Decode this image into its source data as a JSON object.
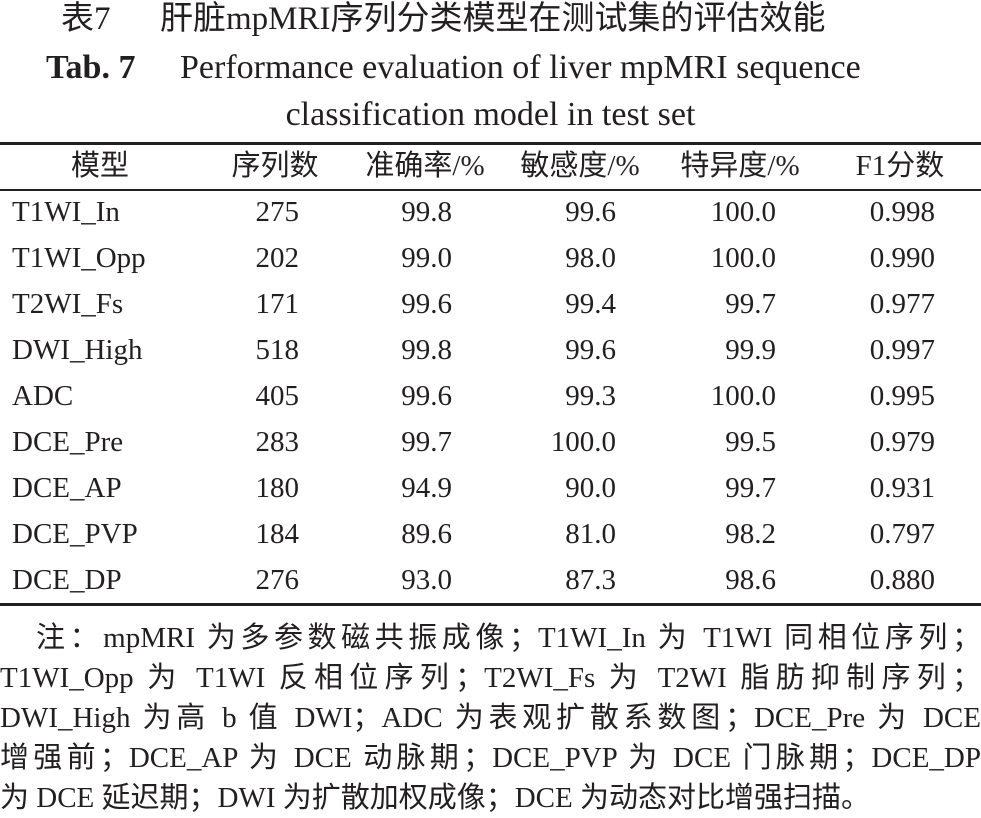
{
  "caption": {
    "label_cn": "表7",
    "title_cn": "肝脏mpMRI序列分类模型在测试集的评估效能",
    "label_en": "Tab. 7",
    "title_en_1": "Performance evaluation of liver mpMRI sequence",
    "title_en_2": "classification model in test set"
  },
  "table": {
    "header": [
      "模型",
      "序列数",
      "准确率/%",
      "敏感度/%",
      "特异度/%",
      "F1分数"
    ],
    "rows": [
      [
        "T1WI_In",
        "275",
        "99.8",
        "99.6",
        "100.0",
        "0.998"
      ],
      [
        "T1WI_Opp",
        "202",
        "99.0",
        "98.0",
        "100.0",
        "0.990"
      ],
      [
        "T2WI_Fs",
        "171",
        "99.6",
        "99.4",
        "99.7",
        "0.977"
      ],
      [
        "DWI_High",
        "518",
        "99.8",
        "99.6",
        "99.9",
        "0.997"
      ],
      [
        "ADC",
        "405",
        "99.6",
        "99.3",
        "100.0",
        "0.995"
      ],
      [
        "DCE_Pre",
        "283",
        "99.7",
        "100.0",
        "99.5",
        "0.979"
      ],
      [
        "DCE_AP",
        "180",
        "94.9",
        "90.0",
        "99.7",
        "0.931"
      ],
      [
        "DCE_PVP",
        "184",
        "89.6",
        "81.0",
        "98.2",
        "0.797"
      ],
      [
        "DCE_DP",
        "276",
        "93.0",
        "87.3",
        "98.6",
        "0.880"
      ]
    ]
  },
  "note": [
    "注：mpMRI 为多参数磁共振成像；T1WI_In 为 T1WI 同相位序列；",
    "T1WI_Opp 为 T1WI 反相位序列；T2WI_Fs 为 T2WI 脂肪抑制序列；",
    "DWI_High 为高 b 值 DWI；ADC 为表观扩散系数图；DCE_Pre 为 DCE",
    "增强前；DCE_AP 为 DCE 动脉期；DCE_PVP 为 DCE 门脉期；DCE_DP",
    "为 DCE 延迟期；DWI 为扩散加权成像；DCE 为动态对比增强扫描。"
  ]
}
